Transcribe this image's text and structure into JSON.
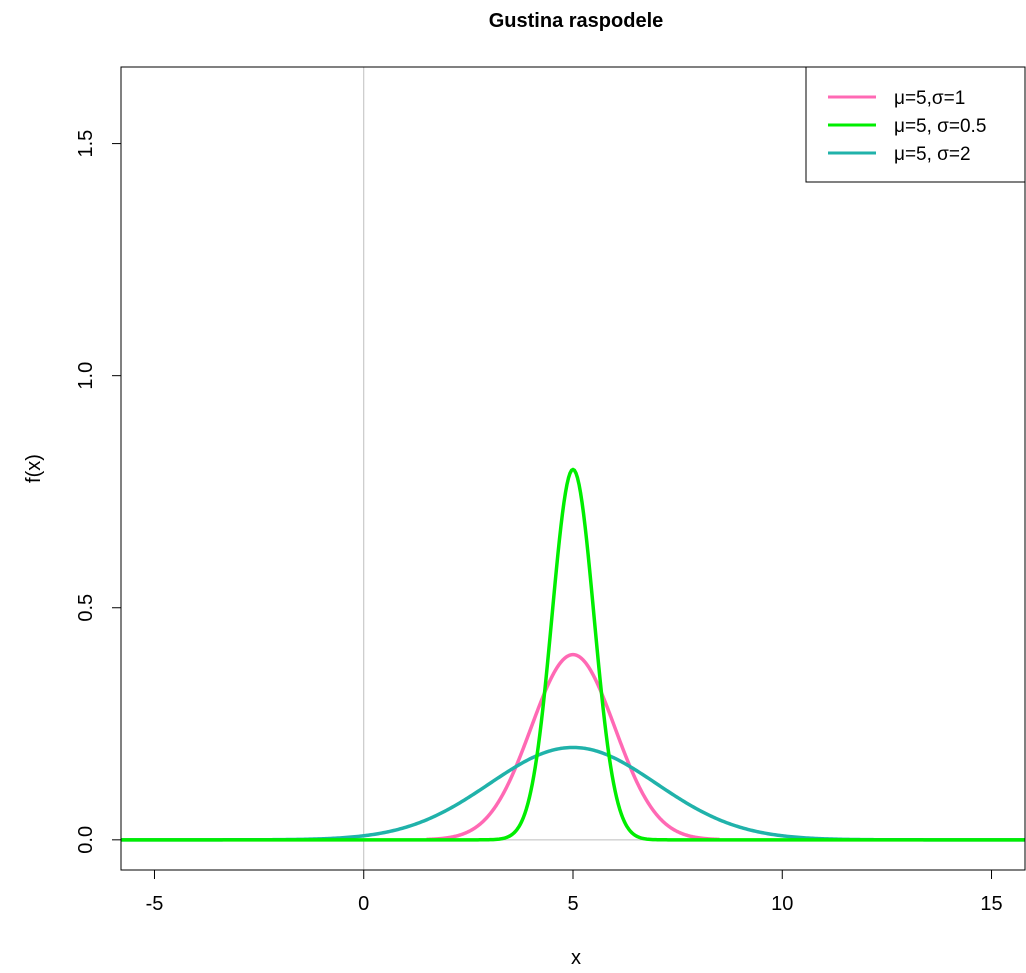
{
  "chart_data": {
    "type": "line",
    "title": "Gustina raspodele",
    "xlabel": "x",
    "ylabel": "f(x)",
    "xlim": [
      -5.8,
      15.8
    ],
    "ylim": [
      -0.065,
      1.665
    ],
    "x_ticks": [
      -5,
      0,
      5,
      10,
      15
    ],
    "x_tick_labels": [
      "-5",
      "0",
      "5",
      "10",
      "15"
    ],
    "y_ticks": [
      0.0,
      0.5,
      1.0,
      1.5
    ],
    "y_tick_labels": [
      "0.0",
      "0.5",
      "1.0",
      "1.5"
    ],
    "reference_lines": {
      "horizontal_y": 0,
      "vertical_x": 0,
      "color": "#bebebe"
    },
    "grid": false,
    "legend_position": "top-right",
    "series": [
      {
        "name": "μ=5,σ=1",
        "distribution": "normal",
        "mu": 5,
        "sigma": 1,
        "x_range": [
          1.5,
          8.5
        ],
        "peak": 0.399,
        "color": "#ff69b4"
      },
      {
        "name": "μ=5, σ=0.5",
        "distribution": "normal",
        "mu": 5,
        "sigma": 0.5,
        "x_range": [
          -5.8,
          15.8
        ],
        "peak": 0.798,
        "color": "#00ee00"
      },
      {
        "name": "μ=5, σ=2",
        "distribution": "normal",
        "mu": 5,
        "sigma": 2,
        "x_range": [
          -5.8,
          15.8
        ],
        "peak": 0.199,
        "color": "#20b2aa"
      }
    ]
  }
}
